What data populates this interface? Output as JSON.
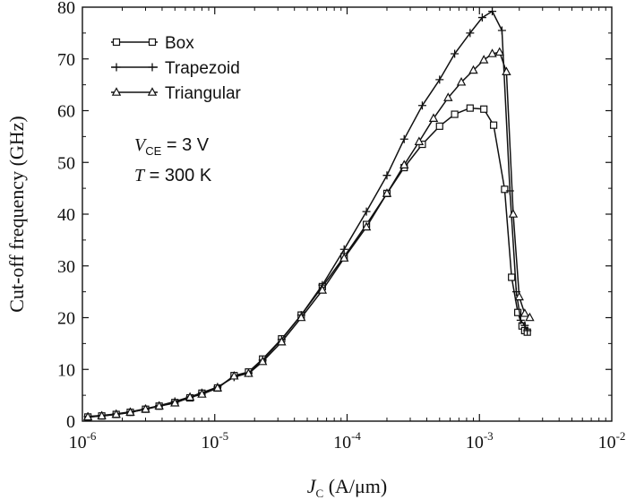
{
  "chart_data": {
    "type": "line",
    "title": "",
    "xlabel": {
      "var": "J",
      "sub": "C",
      "unit": " (A/μm)"
    },
    "ylabel": "Cut-off frequency (GHz)",
    "x_scale": "log",
    "xlim": [
      1e-06,
      0.01
    ],
    "ylim": [
      0,
      80
    ],
    "x_ticks": [
      {
        "base": "10",
        "exp": "-6",
        "value": 1e-06
      },
      {
        "base": "10",
        "exp": "-5",
        "value": 1e-05
      },
      {
        "base": "10",
        "exp": "-4",
        "value": 0.0001
      },
      {
        "base": "10",
        "exp": "-3",
        "value": 0.001
      },
      {
        "base": "10",
        "exp": "-2",
        "value": 0.01
      }
    ],
    "y_ticks": [
      "0",
      "10",
      "20",
      "30",
      "40",
      "50",
      "60",
      "70",
      "80"
    ],
    "grid": false,
    "legend_position": "top-left",
    "annotations": [
      {
        "var": "V",
        "sub": "CE",
        "rest": " = 3 V"
      },
      {
        "var": "T",
        "sub": "",
        "rest": " = 300 K"
      }
    ],
    "series": [
      {
        "name": "Box",
        "marker": "square",
        "x": [
          1.1e-06,
          1.4e-06,
          1.8e-06,
          2.3e-06,
          3e-06,
          3.8e-06,
          5e-06,
          6.5e-06,
          8e-06,
          1.05e-05,
          1.4e-05,
          1.8e-05,
          2.3e-05,
          3.2e-05,
          4.5e-05,
          6.5e-05,
          9.5e-05,
          0.00014,
          0.0002,
          0.00027,
          0.00037,
          0.0005,
          0.00065,
          0.00085,
          0.00108,
          0.00128,
          0.00155,
          0.00175,
          0.00195,
          0.0021,
          0.0022,
          0.0023
        ],
        "y": [
          0.8,
          1.0,
          1.3,
          1.7,
          2.3,
          2.9,
          3.6,
          4.5,
          5.4,
          6.4,
          8.8,
          9.5,
          12.0,
          15.9,
          20.5,
          26.0,
          31.8,
          38.0,
          44.0,
          49.0,
          53.5,
          57.0,
          59.3,
          60.5,
          60.3,
          57.2,
          44.8,
          27.8,
          21.0,
          18.4,
          17.5,
          17.2
        ]
      },
      {
        "name": "Trapezoid",
        "marker": "plus",
        "x": [
          1.1e-06,
          1.4e-06,
          1.8e-06,
          2.3e-06,
          3e-06,
          3.8e-06,
          5e-06,
          6.5e-06,
          8e-06,
          1.05e-05,
          1.4e-05,
          1.8e-05,
          2.3e-05,
          3.2e-05,
          4.5e-05,
          6.5e-05,
          9.5e-05,
          0.00014,
          0.0002,
          0.00027,
          0.00037,
          0.0005,
          0.00065,
          0.00085,
          0.00105,
          0.00125,
          0.00148,
          0.0017,
          0.0019,
          0.00205,
          0.0022,
          0.0023
        ],
        "y": [
          0.9,
          1.1,
          1.4,
          1.8,
          2.4,
          3.0,
          3.8,
          4.7,
          5.5,
          6.6,
          8.5,
          9.3,
          11.8,
          15.8,
          20.5,
          26.3,
          33.2,
          40.5,
          47.5,
          54.5,
          61.0,
          66.0,
          71.0,
          75.0,
          78.0,
          79.2,
          75.5,
          44.5,
          25.0,
          19.5,
          18.5,
          17.5
        ]
      },
      {
        "name": "Triangular",
        "marker": "triangle",
        "x": [
          1.1e-06,
          1.4e-06,
          1.8e-06,
          2.3e-06,
          3e-06,
          3.8e-06,
          5e-06,
          6.5e-06,
          8e-06,
          1.05e-05,
          1.4e-05,
          1.8e-05,
          2.3e-05,
          3.2e-05,
          4.5e-05,
          6.5e-05,
          9.5e-05,
          0.00014,
          0.0002,
          0.00027,
          0.00035,
          0.00045,
          0.00058,
          0.00073,
          0.0009,
          0.00108,
          0.00125,
          0.00142,
          0.0016,
          0.0018,
          0.002,
          0.0022,
          0.0024
        ],
        "y": [
          0.8,
          1.0,
          1.3,
          1.7,
          2.3,
          2.9,
          3.5,
          4.6,
          5.2,
          6.4,
          8.7,
          9.2,
          11.5,
          15.3,
          20.0,
          25.3,
          31.5,
          37.5,
          44.0,
          49.5,
          54.0,
          58.5,
          62.5,
          65.5,
          67.8,
          69.8,
          71.0,
          71.3,
          67.5,
          40.0,
          24.0,
          20.8,
          20.0
        ]
      }
    ]
  }
}
